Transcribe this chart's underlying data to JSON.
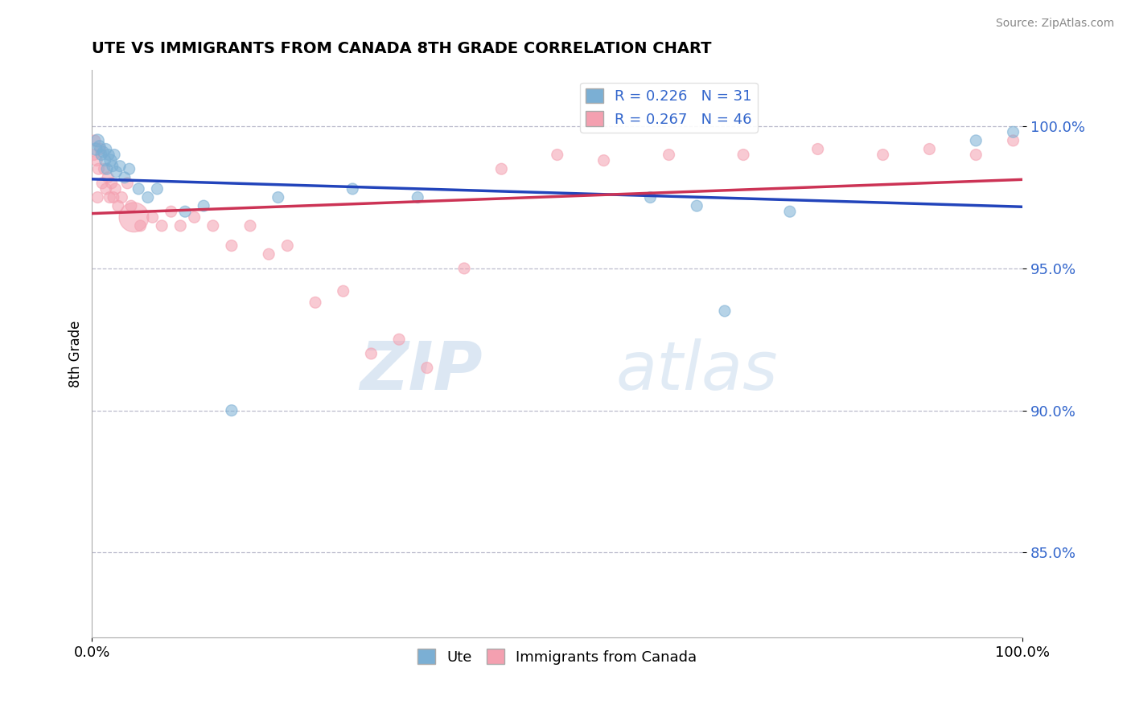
{
  "title": "UTE VS IMMIGRANTS FROM CANADA 8TH GRADE CORRELATION CHART",
  "source": "Source: ZipAtlas.com",
  "ylabel": "8th Grade",
  "legend_blue_r": "R = 0.226",
  "legend_blue_n": "N = 31",
  "legend_pink_r": "R = 0.267",
  "legend_pink_n": "N = 46",
  "xmin": 0.0,
  "xmax": 100.0,
  "ymin": 82.0,
  "ymax": 102.0,
  "blue_color": "#7BAFD4",
  "pink_color": "#F4A0B0",
  "blue_line_color": "#2244BB",
  "pink_line_color": "#CC3355",
  "blue_scatter_x": [
    0.4,
    0.6,
    0.8,
    1.0,
    1.2,
    1.4,
    1.5,
    1.6,
    1.8,
    2.0,
    2.2,
    2.4,
    2.6,
    3.0,
    3.5,
    4.0,
    5.0,
    6.0,
    7.0,
    10.0,
    12.0,
    15.0,
    20.0,
    28.0,
    35.0,
    60.0,
    65.0,
    68.0,
    75.0,
    95.0,
    99.0
  ],
  "blue_scatter_y": [
    99.2,
    99.5,
    99.3,
    99.0,
    99.1,
    98.8,
    99.2,
    98.5,
    99.0,
    98.8,
    98.6,
    99.0,
    98.4,
    98.6,
    98.2,
    98.5,
    97.8,
    97.5,
    97.8,
    97.0,
    97.2,
    90.0,
    97.5,
    97.8,
    97.5,
    97.5,
    97.2,
    93.5,
    97.0,
    99.5,
    99.8
  ],
  "blue_scatter_size": [
    120,
    130,
    110,
    100,
    100,
    100,
    100,
    100,
    100,
    120,
    100,
    100,
    100,
    100,
    100,
    100,
    100,
    100,
    100,
    100,
    100,
    100,
    100,
    100,
    100,
    100,
    100,
    100,
    100,
    100,
    100
  ],
  "pink_scatter_x": [
    0.2,
    0.5,
    0.7,
    0.9,
    1.1,
    1.3,
    1.5,
    1.7,
    1.9,
    2.1,
    2.3,
    2.5,
    2.8,
    3.2,
    3.8,
    4.2,
    5.2,
    6.5,
    7.5,
    8.5,
    9.5,
    11.0,
    13.0,
    15.0,
    17.0,
    19.0,
    21.0,
    24.0,
    27.0,
    30.0,
    33.0,
    36.0,
    40.0,
    44.0,
    50.0,
    55.0,
    62.0,
    70.0,
    78.0,
    85.0,
    90.0,
    95.0,
    99.0,
    0.3,
    0.6,
    4.5
  ],
  "pink_scatter_y": [
    99.0,
    98.8,
    98.5,
    99.2,
    98.0,
    98.5,
    97.8,
    98.2,
    97.5,
    98.0,
    97.5,
    97.8,
    97.2,
    97.5,
    98.0,
    97.2,
    96.5,
    96.8,
    96.5,
    97.0,
    96.5,
    96.8,
    96.5,
    95.8,
    96.5,
    95.5,
    95.8,
    93.8,
    94.2,
    92.0,
    92.5,
    91.5,
    95.0,
    98.5,
    99.0,
    98.8,
    99.0,
    99.0,
    99.2,
    99.0,
    99.2,
    99.0,
    99.5,
    99.5,
    97.5,
    96.8
  ],
  "pink_scatter_size": [
    100,
    100,
    100,
    100,
    100,
    100,
    100,
    100,
    100,
    100,
    100,
    100,
    100,
    100,
    100,
    100,
    100,
    100,
    100,
    100,
    100,
    100,
    100,
    100,
    100,
    100,
    100,
    100,
    100,
    100,
    100,
    100,
    100,
    100,
    100,
    100,
    100,
    100,
    100,
    100,
    100,
    100,
    100,
    100,
    100,
    700
  ],
  "ytick_vals": [
    85.0,
    90.0,
    95.0,
    100.0
  ],
  "ytick_labels": [
    "85.0%",
    "90.0%",
    "95.0%",
    "100.0%"
  ]
}
